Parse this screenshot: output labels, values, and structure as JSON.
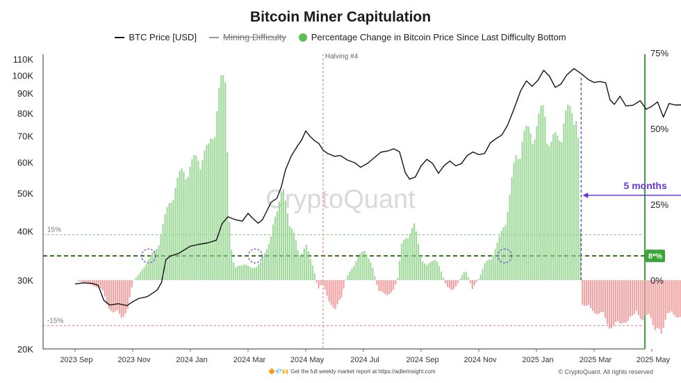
{
  "chart_data": {
    "type": "line",
    "title": "Bitcoin Miner Capitulation",
    "legend": [
      {
        "label": "BTC Price [USD]",
        "style": "line",
        "color": "#111111"
      },
      {
        "label": "Mining Difficulty",
        "style": "line-struck",
        "color": "#999999"
      },
      {
        "label": "Percentage Change in Bitcoin Price Since Last Difficulty Bottom",
        "style": "dot",
        "color": "#5bbf55"
      }
    ],
    "left_axis": {
      "scale": "log",
      "range": [
        20000,
        110000
      ],
      "ticks": [
        {
          "v": 110000,
          "label": "110K"
        },
        {
          "v": 100000,
          "label": "100K"
        },
        {
          "v": 90000,
          "label": "90K"
        },
        {
          "v": 80000,
          "label": "80K"
        },
        {
          "v": 70000,
          "label": "70K"
        },
        {
          "v": 60000,
          "label": "60K"
        },
        {
          "v": 50000,
          "label": "50K"
        },
        {
          "v": 40000,
          "label": "40K"
        },
        {
          "v": 30000,
          "label": "30K"
        },
        {
          "v": 20000,
          "label": "20K"
        }
      ]
    },
    "right_axis": {
      "scale": "linear",
      "range": [
        -22,
        75
      ],
      "ticks": [
        {
          "v": 75,
          "label": "75%"
        },
        {
          "v": 50,
          "label": "50%"
        },
        {
          "v": 25,
          "label": "25%"
        },
        {
          "v": 0,
          "label": "0%"
        }
      ]
    },
    "x_axis": {
      "ticks": [
        "2023 Sep",
        "2023 Nov",
        "2024 Jan",
        "2024 Mar",
        "2024 May",
        "2024 Jul",
        "2024 Sep",
        "2024 Nov",
        "2025 Jan",
        "2025 Mar",
        "2025 May"
      ]
    },
    "reference_lines": [
      {
        "value": 15,
        "label": "15%",
        "color": "#7cc47a",
        "style": "dashed"
      },
      {
        "value": -15,
        "label": "-15%",
        "color": "#e07a7a",
        "style": "dashed"
      },
      {
        "value": 8,
        "label": "8*%",
        "color": "#2f6e1f",
        "style": "dashed-bold"
      }
    ],
    "halving": {
      "label": "Halving #4",
      "month_index": 8.6
    },
    "span_annotation": {
      "label": "5 months",
      "from_month": 17.55,
      "to_month": 22.0,
      "color": "#6a38d8"
    },
    "circle_markers_month": [
      2.55,
      6.25,
      14.9
    ],
    "btc_price": [
      [
        0.0,
        29300
      ],
      [
        0.3,
        29500
      ],
      [
        0.6,
        29400
      ],
      [
        0.8,
        29100
      ],
      [
        1.0,
        26600
      ],
      [
        1.2,
        25900
      ],
      [
        1.5,
        26100
      ],
      [
        1.8,
        25800
      ],
      [
        2.0,
        26400
      ],
      [
        2.2,
        26900
      ],
      [
        2.5,
        27200
      ],
      [
        2.7,
        27800
      ],
      [
        2.85,
        28300
      ],
      [
        3.0,
        29600
      ],
      [
        3.15,
        33800
      ],
      [
        3.3,
        34500
      ],
      [
        3.6,
        35100
      ],
      [
        4.0,
        36600
      ],
      [
        4.3,
        37000
      ],
      [
        4.6,
        37300
      ],
      [
        4.9,
        37900
      ],
      [
        5.1,
        41800
      ],
      [
        5.3,
        43500
      ],
      [
        5.55,
        42800
      ],
      [
        5.8,
        42400
      ],
      [
        6.0,
        44400
      ],
      [
        6.15,
        43200
      ],
      [
        6.35,
        41900
      ],
      [
        6.5,
        42800
      ],
      [
        6.8,
        47400
      ],
      [
        7.0,
        48500
      ],
      [
        7.15,
        51800
      ],
      [
        7.3,
        57400
      ],
      [
        7.5,
        62300
      ],
      [
        7.7,
        65800
      ],
      [
        7.85,
        68200
      ],
      [
        8.0,
        72100
      ],
      [
        8.15,
        69800
      ],
      [
        8.3,
        68100
      ],
      [
        8.45,
        67000
      ],
      [
        8.6,
        64400
      ],
      [
        8.75,
        63200
      ],
      [
        9.0,
        62100
      ],
      [
        9.2,
        62400
      ],
      [
        9.45,
        60700
      ],
      [
        9.7,
        59800
      ],
      [
        9.9,
        58200
      ],
      [
        10.15,
        59600
      ],
      [
        10.4,
        61800
      ],
      [
        10.6,
        63600
      ],
      [
        10.85,
        64100
      ],
      [
        11.05,
        64900
      ],
      [
        11.25,
        63800
      ],
      [
        11.45,
        56400
      ],
      [
        11.6,
        54300
      ],
      [
        11.8,
        55000
      ],
      [
        12.0,
        58700
      ],
      [
        12.2,
        61000
      ],
      [
        12.4,
        59500
      ],
      [
        12.6,
        56200
      ],
      [
        12.8,
        58800
      ],
      [
        13.0,
        60400
      ],
      [
        13.2,
        58700
      ],
      [
        13.4,
        59500
      ],
      [
        13.6,
        62400
      ],
      [
        13.8,
        63700
      ],
      [
        14.0,
        62700
      ],
      [
        14.2,
        63100
      ],
      [
        14.4,
        67200
      ],
      [
        14.6,
        68900
      ],
      [
        14.8,
        70400
      ],
      [
        15.0,
        74600
      ],
      [
        15.2,
        81300
      ],
      [
        15.45,
        91200
      ],
      [
        15.65,
        96800
      ],
      [
        15.85,
        93700
      ],
      [
        16.05,
        97100
      ],
      [
        16.25,
        103000
      ],
      [
        16.45,
        99500
      ],
      [
        16.65,
        93100
      ],
      [
        16.85,
        95000
      ],
      [
        17.05,
        100200
      ],
      [
        17.3,
        104000
      ],
      [
        17.55,
        101000
      ],
      [
        17.8,
        97500
      ],
      [
        18.0,
        95900
      ],
      [
        18.2,
        96400
      ],
      [
        18.4,
        95700
      ],
      [
        18.55,
        86600
      ],
      [
        18.7,
        84300
      ],
      [
        18.9,
        88400
      ],
      [
        19.1,
        83500
      ],
      [
        19.35,
        83900
      ],
      [
        19.6,
        86100
      ],
      [
        19.8,
        81900
      ],
      [
        20.0,
        83300
      ],
      [
        20.2,
        85500
      ],
      [
        20.4,
        78200
      ],
      [
        20.6,
        84700
      ],
      [
        20.8,
        84000
      ],
      [
        21.0,
        84000
      ],
      [
        21.3,
        88100
      ],
      [
        21.5,
        94800
      ],
      [
        21.75,
        94300
      ],
      [
        21.95,
        96300
      ],
      [
        22.1,
        103000
      ],
      [
        22.25,
        104000
      ],
      [
        22.4,
        106500
      ]
    ],
    "pct_change_envelope": [
      [
        0.0,
        0
      ],
      [
        0.9,
        -3
      ],
      [
        1.1,
        -9
      ],
      [
        1.3,
        -11
      ],
      [
        1.6,
        -13
      ],
      [
        1.8,
        -10
      ],
      [
        2.0,
        0
      ],
      [
        2.2,
        2
      ],
      [
        2.5,
        7
      ],
      [
        2.8,
        11
      ],
      [
        3.1,
        22
      ],
      [
        3.4,
        32
      ],
      [
        3.7,
        38
      ],
      [
        4.0,
        40
      ],
      [
        4.3,
        44
      ],
      [
        4.6,
        45
      ],
      [
        4.8,
        55
      ],
      [
        5.0,
        67
      ],
      [
        5.2,
        70
      ],
      [
        5.35,
        14
      ],
      [
        5.5,
        4
      ],
      [
        5.8,
        6
      ],
      [
        6.1,
        4
      ],
      [
        6.4,
        6
      ],
      [
        6.6,
        10
      ],
      [
        6.85,
        20
      ],
      [
        7.0,
        23
      ],
      [
        7.2,
        36
      ],
      [
        7.4,
        18
      ],
      [
        7.6,
        16
      ],
      [
        7.8,
        8
      ],
      [
        8.0,
        12
      ],
      [
        8.2,
        6
      ],
      [
        8.4,
        -3
      ],
      [
        8.55,
        -1
      ],
      [
        8.75,
        -7
      ],
      [
        9.0,
        -10
      ],
      [
        9.2,
        -7
      ],
      [
        9.35,
        0
      ],
      [
        9.55,
        4
      ],
      [
        9.8,
        8
      ],
      [
        10.05,
        11
      ],
      [
        10.3,
        4
      ],
      [
        10.5,
        -4
      ],
      [
        10.8,
        -5
      ],
      [
        11.0,
        -4
      ],
      [
        11.15,
        0
      ],
      [
        11.3,
        12
      ],
      [
        11.55,
        17
      ],
      [
        11.75,
        19
      ],
      [
        11.95,
        9
      ],
      [
        12.15,
        5
      ],
      [
        12.3,
        6
      ],
      [
        12.5,
        8
      ],
      [
        12.7,
        2
      ],
      [
        12.85,
        -2
      ],
      [
        13.05,
        -4
      ],
      [
        13.25,
        -1
      ],
      [
        13.5,
        4
      ],
      [
        13.75,
        -3
      ],
      [
        14.0,
        1
      ],
      [
        14.2,
        6
      ],
      [
        14.4,
        8
      ],
      [
        14.6,
        12
      ],
      [
        14.8,
        18
      ],
      [
        15.0,
        26
      ],
      [
        15.25,
        43
      ],
      [
        15.5,
        50
      ],
      [
        15.75,
        52
      ],
      [
        16.0,
        54
      ],
      [
        16.25,
        61
      ],
      [
        16.45,
        47
      ],
      [
        16.7,
        50
      ],
      [
        16.95,
        57
      ],
      [
        17.2,
        59
      ],
      [
        17.4,
        61
      ],
      [
        17.55,
        -8
      ],
      [
        17.8,
        -10
      ],
      [
        18.0,
        -11
      ],
      [
        18.25,
        -12
      ],
      [
        18.5,
        -16
      ],
      [
        18.75,
        -16
      ],
      [
        19.0,
        -14
      ],
      [
        19.2,
        -15
      ],
      [
        19.45,
        -10
      ],
      [
        19.65,
        -15
      ],
      [
        19.9,
        -11
      ],
      [
        20.1,
        -18
      ],
      [
        20.3,
        -19
      ],
      [
        20.5,
        -11
      ],
      [
        20.75,
        -13
      ],
      [
        21.0,
        -12
      ],
      [
        21.2,
        -10
      ],
      [
        21.5,
        -5
      ],
      [
        21.75,
        -3
      ],
      [
        21.95,
        -2
      ],
      [
        22.1,
        3
      ],
      [
        22.25,
        5
      ],
      [
        22.4,
        8
      ]
    ]
  },
  "watermark": "CryptoQuant",
  "footer": {
    "note": "Get the full weekly market report at https://adlerinsight.com",
    "copyright": "© CryptoQuant. All rights reserved"
  }
}
